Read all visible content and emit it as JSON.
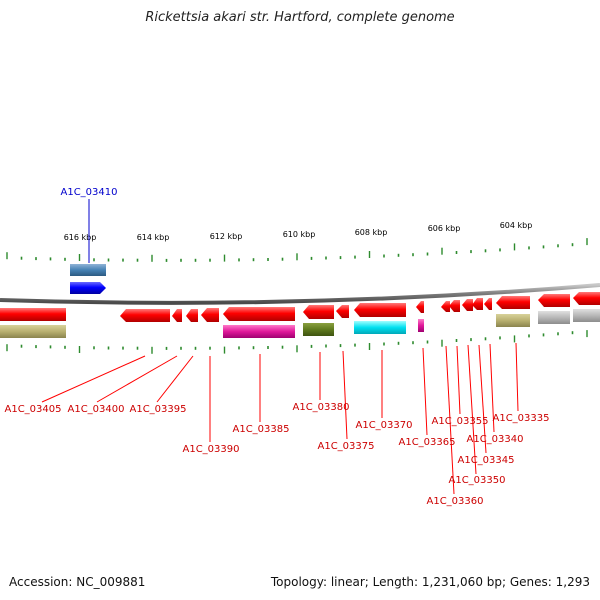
{
  "title": "Rickettsia akari str. Hartford, complete genome",
  "footer": {
    "accession": "Accession: NC_009881",
    "summary": "Topology: linear; Length: 1,231,060 bp; Genes: 1,293"
  },
  "scale_labels": [
    "616 kbp",
    "614 kbp",
    "612 kbp",
    "610 kbp",
    "608 kbp",
    "606 kbp",
    "604 kbp"
  ],
  "top_gene_label": "A1C_03410",
  "gene_labels": [
    "A1C_03405",
    "A1C_03400",
    "A1C_03395",
    "A1C_03390",
    "A1C_03385",
    "A1C_03380",
    "A1C_03375",
    "A1C_03370",
    "A1C_03365",
    "A1C_03360",
    "A1C_03355",
    "A1C_03350",
    "A1C_03345",
    "A1C_03340",
    "A1C_03335"
  ],
  "colors": {
    "backbone": "#8a8a8a",
    "tick": "#2e8b2e",
    "forward_gene": "#0000ff",
    "forward_feature": "#4682b4",
    "reverse_gene": "#ff0000",
    "label_red": "#cc0000",
    "label_blue": "#0000cc"
  }
}
